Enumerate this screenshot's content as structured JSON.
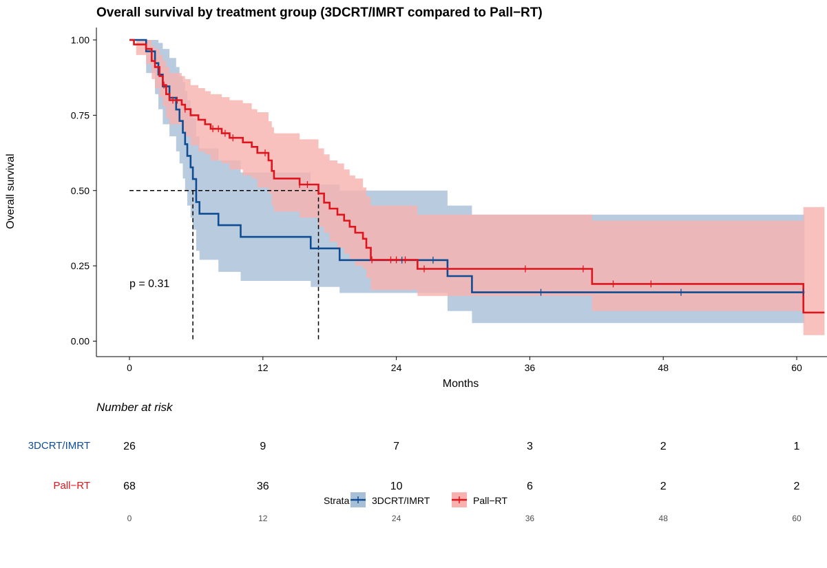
{
  "chart_data": {
    "type": "line",
    "chart_kind": "kaplan-meier survival curve",
    "title": "Overall survival by treatment group (3DCRT/IMRT compared to Pall−RT)",
    "xlabel": "Months",
    "ylabel": "Overall survival",
    "xlim": [
      0,
      62.5
    ],
    "ylim": [
      0,
      1
    ],
    "x_ticks": [
      "0",
      "12",
      "24",
      "36",
      "48",
      "60"
    ],
    "y_ticks": [
      "0.00",
      "0.25",
      "0.50",
      "0.75",
      "1.00"
    ],
    "grid": false,
    "pvalue_label": "p = 0.31",
    "median_reference": {
      "survival": 0.5,
      "medians": [
        5.7,
        17.0
      ]
    },
    "series": [
      {
        "name": "3DCRT/IMRT",
        "color": "#0f4c92",
        "fill": "#a7bfd7",
        "steps": [
          [
            0,
            1.0
          ],
          [
            1.5,
            0.962
          ],
          [
            2.3,
            0.923
          ],
          [
            2.6,
            0.885
          ],
          [
            3.0,
            0.846
          ],
          [
            3.6,
            0.808
          ],
          [
            4.2,
            0.769
          ],
          [
            4.5,
            0.731
          ],
          [
            4.8,
            0.692
          ],
          [
            5.0,
            0.654
          ],
          [
            5.2,
            0.615
          ],
          [
            5.5,
            0.577
          ],
          [
            5.7,
            0.538
          ],
          [
            6.0,
            0.462
          ],
          [
            6.3,
            0.423
          ],
          [
            8.0,
            0.385
          ],
          [
            10.0,
            0.346
          ],
          [
            16.3,
            0.308
          ],
          [
            18.9,
            0.269
          ],
          [
            28.6,
            0.216
          ],
          [
            30.8,
            0.162
          ]
        ],
        "end": 60.7,
        "upper": [
          [
            0,
            1.0
          ],
          [
            1.5,
            1.0
          ],
          [
            2.3,
            1.0
          ],
          [
            2.6,
            0.99
          ],
          [
            3.0,
            0.97
          ],
          [
            3.6,
            0.94
          ],
          [
            4.2,
            0.91
          ],
          [
            4.5,
            0.88
          ],
          [
            4.8,
            0.86
          ],
          [
            5.0,
            0.83
          ],
          [
            5.2,
            0.8
          ],
          [
            5.5,
            0.77
          ],
          [
            5.7,
            0.74
          ],
          [
            6.0,
            0.68
          ],
          [
            6.3,
            0.64
          ],
          [
            8.0,
            0.6
          ],
          [
            10.0,
            0.56
          ],
          [
            16.3,
            0.52
          ],
          [
            18.9,
            0.5
          ],
          [
            28.6,
            0.45
          ],
          [
            30.8,
            0.42
          ]
        ],
        "lower": [
          [
            0,
            1.0
          ],
          [
            1.5,
            0.89
          ],
          [
            2.3,
            0.82
          ],
          [
            2.6,
            0.77
          ],
          [
            3.0,
            0.72
          ],
          [
            3.6,
            0.68
          ],
          [
            4.2,
            0.63
          ],
          [
            4.5,
            0.59
          ],
          [
            4.8,
            0.54
          ],
          [
            5.0,
            0.5
          ],
          [
            5.2,
            0.45
          ],
          [
            5.5,
            0.41
          ],
          [
            5.7,
            0.37
          ],
          [
            6.0,
            0.3
          ],
          [
            6.3,
            0.27
          ],
          [
            8.0,
            0.23
          ],
          [
            10.0,
            0.2
          ],
          [
            16.3,
            0.18
          ],
          [
            18.9,
            0.16
          ],
          [
            28.6,
            0.1
          ],
          [
            30.8,
            0.06
          ]
        ],
        "censor_times": [
          24.5,
          27.3,
          37.0,
          49.6,
          60.6
        ]
      },
      {
        "name": "Pall−RT",
        "color": "#e0141c",
        "fill": "#f8b1ae",
        "steps": [
          [
            0,
            1.0
          ],
          [
            0.4,
            0.985
          ],
          [
            1.5,
            0.97
          ],
          [
            2.0,
            0.93
          ],
          [
            2.3,
            0.91
          ],
          [
            2.7,
            0.88
          ],
          [
            3.0,
            0.85
          ],
          [
            3.3,
            0.82
          ],
          [
            3.6,
            0.8
          ],
          [
            4.7,
            0.785
          ],
          [
            5.0,
            0.77
          ],
          [
            5.5,
            0.75
          ],
          [
            6.2,
            0.735
          ],
          [
            6.8,
            0.72
          ],
          [
            7.3,
            0.705
          ],
          [
            8.3,
            0.69
          ],
          [
            9.0,
            0.675
          ],
          [
            10.2,
            0.66
          ],
          [
            11.0,
            0.645
          ],
          [
            11.5,
            0.625
          ],
          [
            12.5,
            0.6
          ],
          [
            12.8,
            0.565
          ],
          [
            13.0,
            0.54
          ],
          [
            15.3,
            0.52
          ],
          [
            17.0,
            0.49
          ],
          [
            17.5,
            0.46
          ],
          [
            18.0,
            0.44
          ],
          [
            18.7,
            0.42
          ],
          [
            19.3,
            0.4
          ],
          [
            19.8,
            0.38
          ],
          [
            20.3,
            0.36
          ],
          [
            21.0,
            0.34
          ],
          [
            21.3,
            0.31
          ],
          [
            21.7,
            0.27
          ],
          [
            25.9,
            0.24
          ],
          [
            41.6,
            0.19
          ],
          [
            60.6,
            0.095
          ]
        ],
        "end": 62.5,
        "upper": [
          [
            0,
            1.0
          ],
          [
            0.6,
            1.0
          ],
          [
            1.5,
            1.0
          ],
          [
            2.0,
            0.98
          ],
          [
            2.3,
            0.97
          ],
          [
            2.7,
            0.95
          ],
          [
            3.0,
            0.93
          ],
          [
            3.3,
            0.91
          ],
          [
            3.6,
            0.89
          ],
          [
            4.7,
            0.88
          ],
          [
            5.0,
            0.87
          ],
          [
            5.5,
            0.85
          ],
          [
            6.2,
            0.84
          ],
          [
            6.8,
            0.83
          ],
          [
            7.3,
            0.82
          ],
          [
            8.3,
            0.81
          ],
          [
            9.0,
            0.8
          ],
          [
            10.2,
            0.79
          ],
          [
            11.0,
            0.77
          ],
          [
            11.5,
            0.76
          ],
          [
            12.5,
            0.73
          ],
          [
            12.8,
            0.71
          ],
          [
            13.0,
            0.69
          ],
          [
            15.3,
            0.67
          ],
          [
            17.0,
            0.64
          ],
          [
            17.5,
            0.62
          ],
          [
            18.0,
            0.6
          ],
          [
            18.7,
            0.59
          ],
          [
            19.3,
            0.57
          ],
          [
            19.8,
            0.55
          ],
          [
            20.3,
            0.54
          ],
          [
            21.0,
            0.51
          ],
          [
            21.3,
            0.48
          ],
          [
            21.7,
            0.45
          ],
          [
            25.9,
            0.42
          ],
          [
            41.6,
            0.4
          ],
          [
            60.6,
            0.445
          ]
        ],
        "lower": [
          [
            0,
            1.0
          ],
          [
            0.6,
            0.95
          ],
          [
            1.5,
            0.92
          ],
          [
            2.0,
            0.87
          ],
          [
            2.3,
            0.84
          ],
          [
            2.7,
            0.81
          ],
          [
            3.0,
            0.78
          ],
          [
            3.3,
            0.74
          ],
          [
            3.6,
            0.72
          ],
          [
            4.7,
            0.7
          ],
          [
            5.0,
            0.68
          ],
          [
            5.5,
            0.65
          ],
          [
            6.2,
            0.63
          ],
          [
            6.8,
            0.62
          ],
          [
            7.3,
            0.6
          ],
          [
            8.3,
            0.59
          ],
          [
            9.0,
            0.57
          ],
          [
            10.2,
            0.55
          ],
          [
            11.0,
            0.54
          ],
          [
            11.5,
            0.51
          ],
          [
            12.5,
            0.49
          ],
          [
            12.8,
            0.45
          ],
          [
            13.0,
            0.43
          ],
          [
            15.3,
            0.41
          ],
          [
            17.0,
            0.38
          ],
          [
            17.5,
            0.36
          ],
          [
            18.0,
            0.33
          ],
          [
            18.7,
            0.31
          ],
          [
            19.3,
            0.29
          ],
          [
            19.8,
            0.27
          ],
          [
            20.3,
            0.25
          ],
          [
            21.0,
            0.24
          ],
          [
            21.3,
            0.21
          ],
          [
            21.7,
            0.17
          ],
          [
            25.9,
            0.15
          ],
          [
            41.6,
            0.1
          ],
          [
            60.6,
            0.02
          ]
        ],
        "censor_times": [
          3.1,
          3.9,
          4.3,
          5.0,
          7.5,
          8.0,
          8.6,
          9.3,
          12.2,
          15.3,
          16.0,
          21.8,
          23.5,
          24.0,
          24.8,
          26.5,
          35.6,
          40.8,
          43.5,
          46.9
        ]
      }
    ],
    "risk_table": {
      "title": "Number at risk",
      "times": [
        "0",
        "12",
        "24",
        "36",
        "48",
        "60"
      ],
      "rows": [
        {
          "label": "3DCRT/IMRT",
          "values": [
            "26",
            "9",
            "7",
            "3",
            "2",
            "1"
          ]
        },
        {
          "label": "Pall−RT",
          "values": [
            "68",
            "36",
            "10",
            "6",
            "2",
            "2"
          ]
        }
      ]
    },
    "legend": {
      "title": "Strata",
      "position": "bottom",
      "items": [
        "3DCRT/IMRT",
        "Pall−RT"
      ]
    }
  }
}
